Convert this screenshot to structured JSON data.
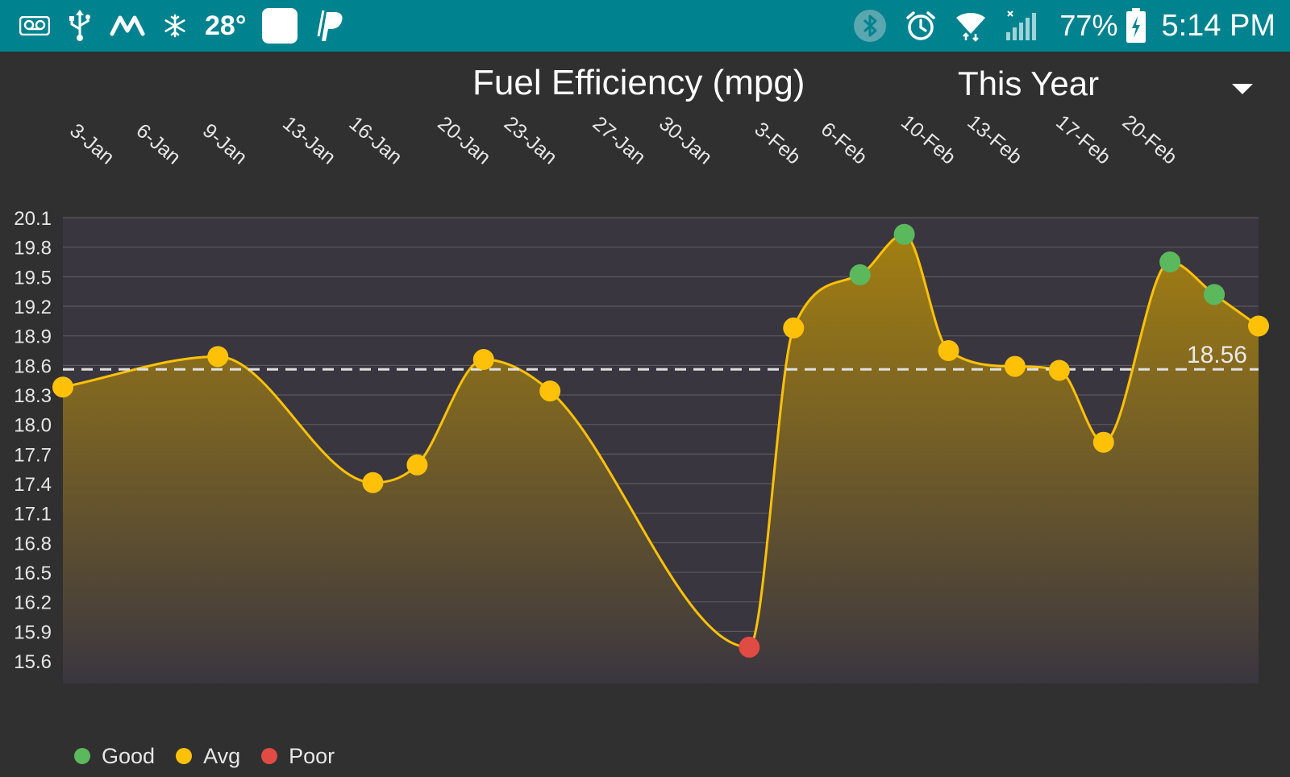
{
  "status_bar": {
    "temperature": "28°",
    "battery": "77%",
    "time": "5:14 PM",
    "left_icons": [
      "voicemail-icon",
      "usb-icon",
      "m-app-icon",
      "snowflake-icon",
      "blank-app-icon",
      "paypal-icon"
    ],
    "right_icons": [
      "bluetooth-icon",
      "alarm-icon",
      "wifi-icon",
      "cell-signal-icon",
      "battery-charging-icon"
    ]
  },
  "header": {
    "title": "Fuel Efficiency (mpg)",
    "range_selected": "This Year"
  },
  "legend": [
    {
      "label": "Good",
      "color": "#5cb85c"
    },
    {
      "label": "Avg",
      "color": "#ffc107"
    },
    {
      "label": "Poor",
      "color": "#e04b44"
    }
  ],
  "chart_data": {
    "type": "area",
    "title": "Fuel Efficiency (mpg)",
    "xlabel": "",
    "ylabel": "",
    "x_range": [
      "2017-01-01",
      "2017-02-24"
    ],
    "ylim": [
      15.3,
      20.1
    ],
    "y_ticks": [
      20.1,
      19.8,
      19.5,
      19.2,
      18.9,
      18.6,
      18.3,
      18.0,
      17.7,
      17.4,
      17.1,
      16.8,
      16.5,
      16.2,
      15.9,
      15.6
    ],
    "x_ticks": [
      {
        "date": "2017-01-03",
        "label": "3-Jan"
      },
      {
        "date": "2017-01-06",
        "label": "6-Jan"
      },
      {
        "date": "2017-01-09",
        "label": "9-Jan"
      },
      {
        "date": "2017-01-13",
        "label": "13-Jan"
      },
      {
        "date": "2017-01-16",
        "label": "16-Jan"
      },
      {
        "date": "2017-01-20",
        "label": "20-Jan"
      },
      {
        "date": "2017-01-23",
        "label": "23-Jan"
      },
      {
        "date": "2017-01-27",
        "label": "27-Jan"
      },
      {
        "date": "2017-01-30",
        "label": "30-Jan"
      },
      {
        "date": "2017-02-03",
        "label": "3-Feb"
      },
      {
        "date": "2017-02-06",
        "label": "6-Feb"
      },
      {
        "date": "2017-02-10",
        "label": "10-Feb"
      },
      {
        "date": "2017-02-13",
        "label": "13-Feb"
      },
      {
        "date": "2017-02-17",
        "label": "17-Feb"
      },
      {
        "date": "2017-02-20",
        "label": "20-Feb"
      }
    ],
    "average": {
      "value": 18.56,
      "label": "18.56",
      "style": "dashed",
      "color": "#e0e0e0"
    },
    "grid": true,
    "legend_position": "bottom-left",
    "line_color": "#ffc107",
    "fill_top_color": "#a8830f",
    "fill_bottom_color": "#3a3640",
    "category_colors": {
      "Good": "#5cb85c",
      "Avg": "#ffc107",
      "Poor": "#e04b44"
    },
    "series": [
      {
        "points": [
          {
            "date": "2017-01-01",
            "value": 18.38,
            "category": "Avg"
          },
          {
            "date": "2017-01-08",
            "value": 18.69,
            "category": "Avg"
          },
          {
            "date": "2017-01-15",
            "value": 17.41,
            "category": "Avg"
          },
          {
            "date": "2017-01-17",
            "value": 17.59,
            "category": "Avg"
          },
          {
            "date": "2017-01-20",
            "value": 18.66,
            "category": "Avg"
          },
          {
            "date": "2017-01-23",
            "value": 18.34,
            "category": "Avg"
          },
          {
            "date": "2017-02-01",
            "value": 15.74,
            "category": "Poor"
          },
          {
            "date": "2017-02-03",
            "value": 18.98,
            "category": "Avg"
          },
          {
            "date": "2017-02-06",
            "value": 19.52,
            "category": "Good"
          },
          {
            "date": "2017-02-08",
            "value": 19.93,
            "category": "Good"
          },
          {
            "date": "2017-02-10",
            "value": 18.75,
            "category": "Avg"
          },
          {
            "date": "2017-02-13",
            "value": 18.59,
            "category": "Avg"
          },
          {
            "date": "2017-02-15",
            "value": 18.55,
            "category": "Avg"
          },
          {
            "date": "2017-02-17",
            "value": 17.82,
            "category": "Avg"
          },
          {
            "date": "2017-02-20",
            "value": 19.65,
            "category": "Good"
          },
          {
            "date": "2017-02-22",
            "value": 19.32,
            "category": "Good"
          },
          {
            "date": "2017-02-24",
            "value": 19.0,
            "category": "Avg"
          }
        ]
      }
    ]
  }
}
